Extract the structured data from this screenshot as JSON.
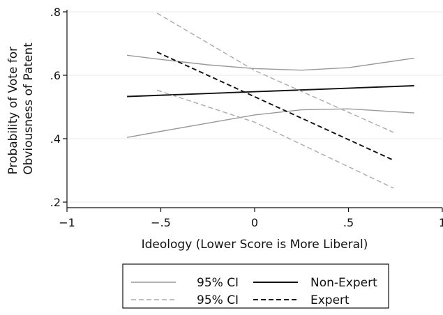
{
  "chart_data": {
    "type": "line",
    "xlabel": "Ideology (Lower Score is More Liberal)",
    "ylabel_lines": [
      "Probability of Vote for",
      "Obviousness of Patent"
    ],
    "xlim": [
      -1,
      1
    ],
    "ylim": [
      0.2,
      0.8
    ],
    "xticks": [
      {
        "value": -1,
        "label": "−1"
      },
      {
        "value": -0.5,
        "label": "−.5"
      },
      {
        "value": 0,
        "label": "0"
      },
      {
        "value": 0.5,
        "label": ".5"
      },
      {
        "value": 1,
        "label": "1"
      }
    ],
    "yticks": [
      {
        "value": 0.2,
        "label": ".2"
      },
      {
        "value": 0.4,
        "label": ".4"
      },
      {
        "value": 0.6,
        "label": ".6"
      },
      {
        "value": 0.8,
        "label": ".8"
      }
    ],
    "grid": true,
    "legend_position": "bottom",
    "series": [
      {
        "name": "Non-Expert",
        "style": "solid",
        "color": "#111111",
        "x": [
          -0.68,
          0.85
        ],
        "y": [
          0.533,
          0.567
        ]
      },
      {
        "name": "95% CI",
        "style": "solid",
        "color": "#999999",
        "x": [
          -0.68,
          -0.5,
          -0.25,
          0,
          0.25,
          0.5,
          0.85
        ],
        "y": [
          0.663,
          0.65,
          0.633,
          0.621,
          0.616,
          0.624,
          0.654
        ]
      },
      {
        "name": "95% CI",
        "style": "solid",
        "color": "#999999",
        "legend": false,
        "x": [
          -0.68,
          -0.5,
          -0.25,
          0,
          0.25,
          0.5,
          0.85
        ],
        "y": [
          0.404,
          0.423,
          0.449,
          0.475,
          0.491,
          0.494,
          0.481
        ]
      },
      {
        "name": "Expert",
        "style": "dashed",
        "color": "#111111",
        "x": [
          -0.52,
          0.74
        ],
        "y": [
          0.673,
          0.332
        ]
      },
      {
        "name": "95% CI",
        "style": "dashed",
        "color": "#aaaaaa",
        "x": [
          -0.52,
          0,
          0.74
        ],
        "y": [
          0.796,
          0.615,
          0.42
        ]
      },
      {
        "name": "95% CI",
        "style": "dashed",
        "color": "#aaaaaa",
        "legend": false,
        "x": [
          -0.52,
          0,
          0.74
        ],
        "y": [
          0.553,
          0.452,
          0.244
        ]
      }
    ],
    "legend": [
      {
        "label": "95% CI",
        "style": "solid",
        "color": "#999999"
      },
      {
        "label": "Non-Expert",
        "style": "solid",
        "color": "#111111"
      },
      {
        "label": "95% CI",
        "style": "dashed",
        "color": "#aaaaaa"
      },
      {
        "label": "Expert",
        "style": "dashed",
        "color": "#111111"
      }
    ]
  }
}
